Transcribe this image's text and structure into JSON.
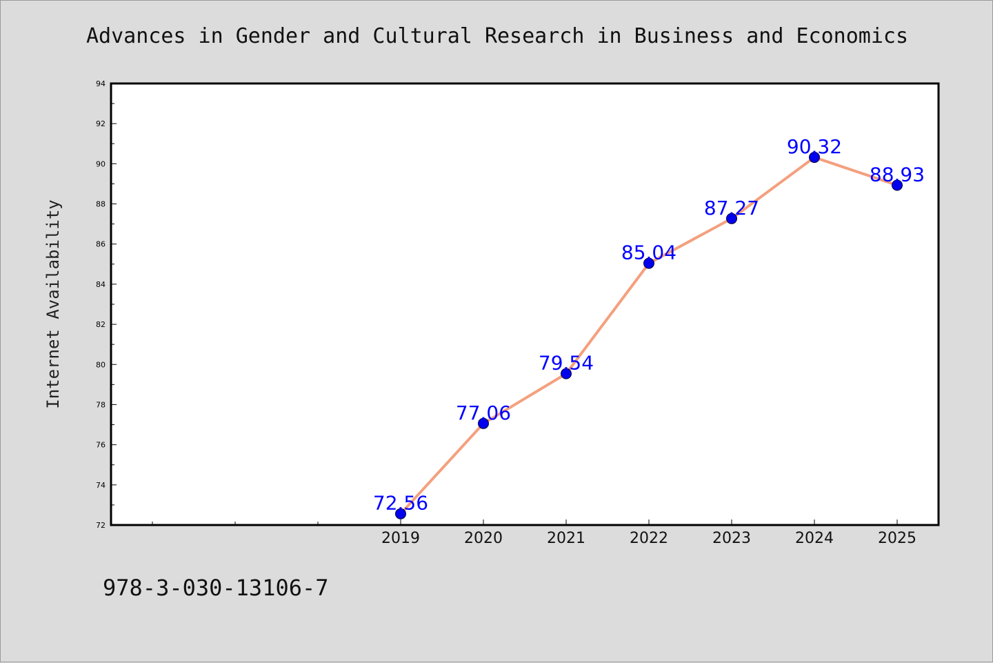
{
  "title": "Advances in Gender and Cultural Research in Business and Economics",
  "footer": "978-3-030-13106-7",
  "colors": {
    "line": "#f4a07e",
    "marker": "#0000ee",
    "label": "#0000ff",
    "background": "#dcdcdc",
    "plot_bg": "#ffffff"
  },
  "chart_data": {
    "type": "line",
    "title": "Advances in Gender and Cultural Research in Business and Economics",
    "xlabel": "",
    "ylabel": "Internet Availability",
    "x": [
      "2019",
      "2020",
      "2021",
      "2022",
      "2023",
      "2024",
      "2025"
    ],
    "values": [
      72.56,
      77.06,
      79.54,
      85.04,
      87.27,
      90.32,
      88.93
    ],
    "data_labels": [
      "72.56",
      "77.06",
      "79.54",
      "85.04",
      "87.27",
      "90.32",
      "88.93"
    ],
    "ylim": [
      72,
      94
    ],
    "yticks": [
      72,
      74,
      76,
      78,
      80,
      82,
      84,
      86,
      88,
      90,
      92,
      94
    ],
    "xlim_categories": [
      "",
      "",
      "",
      "2019",
      "2020",
      "2021",
      "2022",
      "2023",
      "2024",
      "2025"
    ],
    "grid": false,
    "legend": "none"
  }
}
